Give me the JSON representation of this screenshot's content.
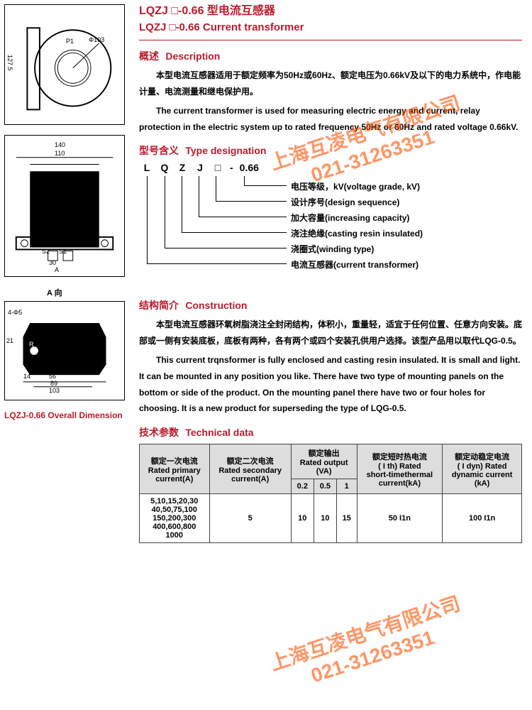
{
  "title": {
    "cn": "LQZJ □-0.66 型电流互感器",
    "en": "LQZJ □-0.66 Current transformer"
  },
  "sections": {
    "description": {
      "head_cn": "概述",
      "head_en": "Description",
      "para_cn": "本型电流互感器适用于额定频率为50Hz或60Hz、额定电压为0.66kV及以下的电力系统中，作电能计量、电流测量和继电保护用。",
      "para_en": "The current transformer is used for measuring electric energy and current, relay protection in the electric system up to rated frequency 50Hz or 60Hz and rated voltage 0.66kV."
    },
    "type_designation": {
      "head_cn": "型号含义",
      "head_en": "Type designation",
      "code": [
        "L",
        "Q",
        "Z",
        "J",
        "□",
        "-",
        "0.66"
      ],
      "labels": [
        "电压等级，kV(voltage grade, kV)",
        "设计序号(design sequence)",
        "加大容量(increasing capacity)",
        "浇注绝缘(casting resin insulated)",
        "浇圈式(winding type)",
        "电流互感器(current transformer)"
      ]
    },
    "construction": {
      "head_cn": "结构简介",
      "head_en": "Construction",
      "para_cn": "本型电流互感器环氧树脂浇注全封闭结构，体积小，重量轻，适宜于任何位置、任意方向安装。底部或一侧有安装底板，底板有两种，各有两个或四个安装孔供用户选择。该型产品用以取代LQG-0.5。",
      "para_en": "This current trqnsformer is fully enclosed and casting resin insulated. It is small and light. It can be mounted in any position you like. There have two type of mounting panels on the bottom or side of the product. On the mounting panel there have two or four holes for choosing. It is a new product for superseding the type of LQG-0.5."
    },
    "tech": {
      "head_cn": "技术参数",
      "head_en": "Technical data"
    }
  },
  "left": {
    "caption": "LQZJ-0.66 Overall Dimension",
    "dia1_labels": {
      "p1": "P1",
      "phi": "Φ103",
      "h": "127.5"
    },
    "dia2_labels": {
      "w1": "140",
      "w2": "110",
      "s1": "S1",
      "s2": "S2",
      "b": "30",
      "arrow": "A"
    },
    "dia3_labels": {
      "dir": "A 向",
      "holes": "4-Φ5",
      "d1": "21",
      "d2": "14",
      "d3": "56",
      "d4": "89",
      "d5": "103",
      "r": "R"
    }
  },
  "table": {
    "headers": {
      "c1": "额定一次电流\nRated primary\ncurrent(A)",
      "c2": "额定二次电流\nRated secondary\ncurrent(A)",
      "c3": "额定输出\nRated output\n(VA)",
      "c4": "额定短时热电流\n( I th) Rated\nshort-timethermal\ncurrent(kA)",
      "c5": "额定动稳定电流\n( I dyn) Rated\ndynamic current\n(kA)"
    },
    "sub_headers": [
      "0.2",
      "0.5",
      "1"
    ],
    "row": {
      "primary": "5,10,15,20,30\n40,50,75,100\n150,200,300\n400,600,800\n1000",
      "secondary": "5",
      "out02": "10",
      "out05": "10",
      "out1": "15",
      "ith": "50 I1n",
      "idyn": "100 I1n"
    }
  },
  "watermark": {
    "line1": "上海互凌电气有限公司",
    "line2": "021-31263351"
  },
  "colors": {
    "accent": "#bb1a2b",
    "table_head": "#dddddd",
    "border": "#444444"
  }
}
